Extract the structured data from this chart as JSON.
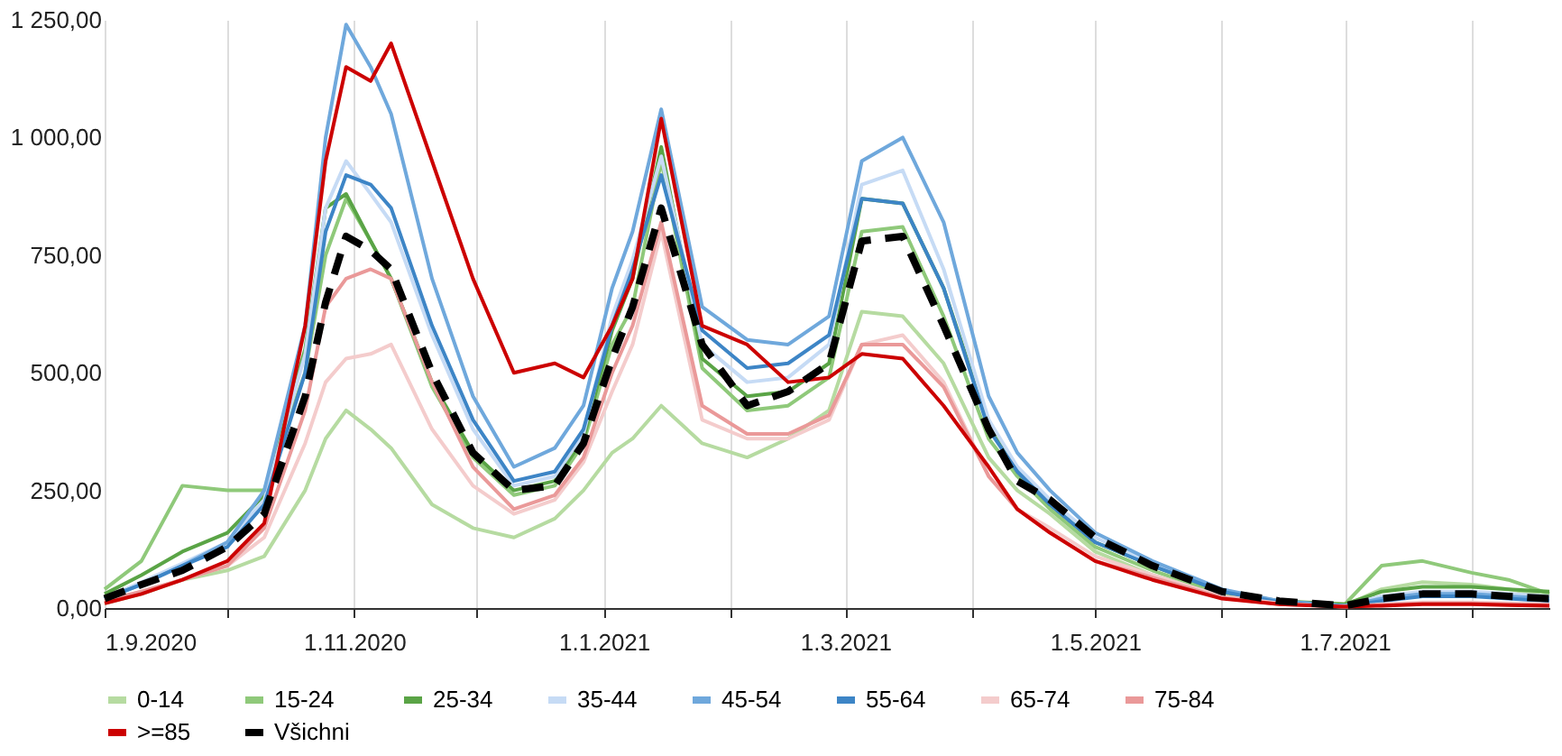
{
  "chart_data": {
    "type": "line",
    "x": [
      "2020-09-01",
      "2020-09-10",
      "2020-09-20",
      "2020-10-01",
      "2020-10-10",
      "2020-10-20",
      "2020-10-25",
      "2020-10-30",
      "2020-11-05",
      "2020-11-10",
      "2020-11-20",
      "2020-11-30",
      "2020-12-10",
      "2020-12-20",
      "2020-12-27",
      "2021-01-03",
      "2021-01-08",
      "2021-01-15",
      "2021-01-25",
      "2021-02-05",
      "2021-02-15",
      "2021-02-25",
      "2021-03-05",
      "2021-03-15",
      "2021-03-25",
      "2021-04-05",
      "2021-04-12",
      "2021-04-20",
      "2021-05-01",
      "2021-05-15",
      "2021-06-01",
      "2021-06-15",
      "2021-07-01",
      "2021-07-10",
      "2021-07-20",
      "2021-08-01",
      "2021-08-10",
      "2021-08-20"
    ],
    "series": [
      {
        "name": "0-14",
        "color": "#b6dba1",
        "values": [
          10,
          30,
          60,
          80,
          110,
          250,
          360,
          420,
          380,
          340,
          220,
          170,
          150,
          190,
          250,
          330,
          360,
          430,
          350,
          320,
          360,
          420,
          630,
          620,
          520,
          320,
          250,
          200,
          120,
          70,
          25,
          10,
          5,
          40,
          55,
          50,
          40,
          25
        ]
      },
      {
        "name": "15-24",
        "color": "#8fc97a",
        "values": [
          40,
          100,
          260,
          250,
          250,
          500,
          750,
          870,
          780,
          700,
          470,
          320,
          240,
          260,
          350,
          560,
          640,
          950,
          510,
          420,
          430,
          490,
          800,
          810,
          620,
          360,
          280,
          210,
          130,
          80,
          30,
          12,
          8,
          90,
          100,
          75,
          60,
          30
        ]
      },
      {
        "name": "25-34",
        "color": "#5aa446",
        "values": [
          30,
          70,
          120,
          160,
          240,
          550,
          850,
          880,
          780,
          700,
          480,
          330,
          250,
          270,
          360,
          590,
          700,
          980,
          530,
          450,
          460,
          520,
          870,
          860,
          680,
          390,
          290,
          220,
          140,
          90,
          35,
          15,
          8,
          35,
          45,
          45,
          40,
          35
        ]
      },
      {
        "name": "35-44",
        "color": "#c6dbf5",
        "values": [
          20,
          55,
          95,
          140,
          230,
          540,
          850,
          950,
          880,
          820,
          580,
          380,
          260,
          280,
          370,
          620,
          740,
          960,
          560,
          480,
          490,
          560,
          900,
          930,
          720,
          400,
          300,
          230,
          150,
          95,
          38,
          14,
          5,
          25,
          35,
          35,
          30,
          25
        ]
      },
      {
        "name": "45-54",
        "color": "#6fa8dc",
        "values": [
          20,
          50,
          90,
          140,
          250,
          600,
          1000,
          1240,
          1150,
          1050,
          700,
          450,
          300,
          340,
          430,
          680,
          800,
          1060,
          640,
          570,
          560,
          620,
          950,
          1000,
          820,
          450,
          330,
          250,
          160,
          100,
          40,
          15,
          5,
          20,
          30,
          30,
          25,
          20
        ]
      },
      {
        "name": "55-64",
        "color": "#3d85c6",
        "values": [
          20,
          50,
          90,
          130,
          220,
          500,
          800,
          920,
          900,
          850,
          600,
          400,
          270,
          290,
          380,
          600,
          720,
          920,
          590,
          510,
          520,
          580,
          870,
          860,
          680,
          380,
          290,
          220,
          140,
          90,
          35,
          12,
          4,
          15,
          25,
          25,
          20,
          15
        ]
      },
      {
        "name": "65-74",
        "color": "#f4cccc",
        "values": [
          15,
          35,
          60,
          90,
          150,
          350,
          480,
          530,
          540,
          560,
          380,
          260,
          200,
          230,
          310,
          460,
          560,
          800,
          400,
          360,
          360,
          400,
          560,
          580,
          480,
          280,
          210,
          170,
          110,
          70,
          25,
          10,
          3,
          8,
          12,
          12,
          10,
          8
        ]
      },
      {
        "name": "75-84",
        "color": "#ea9999",
        "values": [
          15,
          35,
          60,
          90,
          170,
          420,
          640,
          700,
          720,
          700,
          480,
          300,
          210,
          240,
          320,
          500,
          600,
          820,
          430,
          370,
          370,
          410,
          560,
          560,
          470,
          280,
          210,
          160,
          100,
          65,
          22,
          8,
          3,
          6,
          10,
          10,
          8,
          6
        ]
      },
      {
        "name": ">=85",
        "color": "#cc0000",
        "values": [
          10,
          30,
          60,
          100,
          180,
          600,
          950,
          1150,
          1120,
          1200,
          950,
          700,
          500,
          520,
          490,
          600,
          700,
          1040,
          600,
          560,
          480,
          490,
          540,
          530,
          430,
          300,
          210,
          160,
          100,
          60,
          20,
          8,
          3,
          5,
          8,
          8,
          6,
          5
        ]
      },
      {
        "name": "Všichni",
        "color": "#000000",
        "line_style": "dashed",
        "values": [
          20,
          50,
          80,
          130,
          200,
          450,
          650,
          790,
          760,
          720,
          500,
          330,
          250,
          260,
          350,
          530,
          640,
          850,
          560,
          430,
          460,
          520,
          780,
          790,
          600,
          380,
          270,
          230,
          150,
          90,
          35,
          15,
          5,
          20,
          30,
          30,
          25,
          20
        ]
      }
    ],
    "xlim": [
      "2020-09-01",
      "2021-08-20"
    ],
    "xticks": [
      {
        "value": "2020-09-01",
        "label": "1.9.2020"
      },
      {
        "value": "2020-10-01",
        "label": null
      },
      {
        "value": "2020-11-01",
        "label": "1.11.2020"
      },
      {
        "value": "2020-12-01",
        "label": null
      },
      {
        "value": "2021-01-01",
        "label": "1.1.2021"
      },
      {
        "value": "2021-02-01",
        "label": null
      },
      {
        "value": "2021-03-01",
        "label": "1.3.2021"
      },
      {
        "value": "2021-04-01",
        "label": null
      },
      {
        "value": "2021-05-01",
        "label": "1.5.2021"
      },
      {
        "value": "2021-06-01",
        "label": null
      },
      {
        "value": "2021-07-01",
        "label": "1.7.2021"
      },
      {
        "value": "2021-08-01",
        "label": null
      }
    ],
    "ylim": [
      0,
      1250
    ],
    "yticks": [
      {
        "value": 0,
        "label": "0,00"
      },
      {
        "value": 250,
        "label": "250,00"
      },
      {
        "value": 500,
        "label": "500,00"
      },
      {
        "value": 750,
        "label": "750,00"
      },
      {
        "value": 1000,
        "label": "1 000,00"
      },
      {
        "value": 1250,
        "label": "1 250,00"
      }
    ],
    "grid": "x",
    "legend": "bottom",
    "line_style": "solid"
  }
}
